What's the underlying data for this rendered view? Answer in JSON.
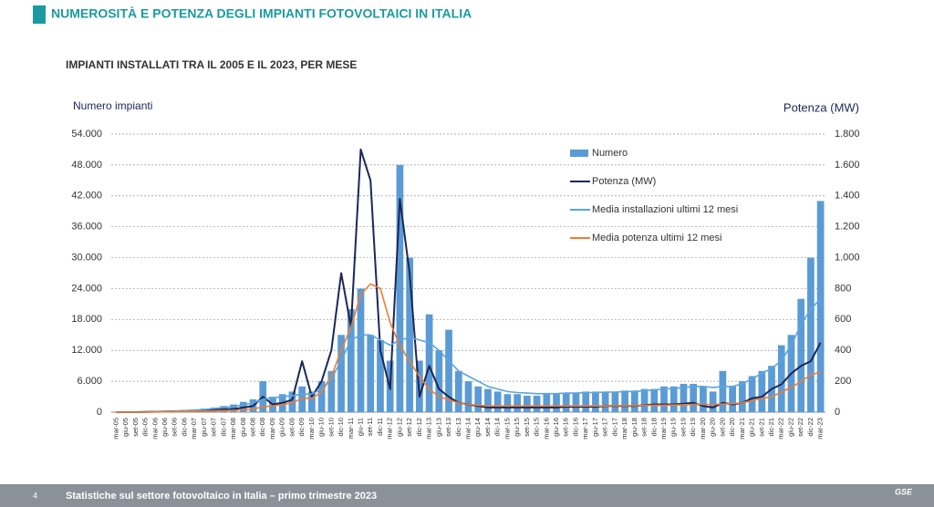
{
  "header": {
    "title": "NUMEROSITÀ E POTENZA DEGLI IMPIANTI FOTOVOLTAICI IN ITALIA"
  },
  "footer": {
    "page": "4",
    "text": "Statistiche sul settore fotovoltaico in Italia – primo trimestre 2023",
    "logo": "GSE"
  },
  "chart_data": {
    "type": "bar",
    "title": "IMPIANTI INSTALLATI TRA IL 2005 E IL 2023, PER MESE",
    "y_label": "Numero impianti",
    "y2_label": "Potenza (MW)",
    "categories": [
      "mar-05",
      "giu-05",
      "set-05",
      "dic-05",
      "mar-06",
      "giu-06",
      "set-06",
      "dic-06",
      "mar-07",
      "giu-07",
      "set-07",
      "dic-07",
      "mar-08",
      "giu-08",
      "set-08",
      "dic-08",
      "mar-09",
      "giu-09",
      "set-09",
      "dic-09",
      "mar-10",
      "giu-10",
      "set-10",
      "dic-10",
      "mar-11",
      "giu-11",
      "set-11",
      "dic-11",
      "mar-12",
      "giu-12",
      "set-12",
      "dic-12",
      "mar-13",
      "giu-13",
      "set-13",
      "dic-13",
      "mar-14",
      "giu-14",
      "set-14",
      "dic-14",
      "mar-15",
      "giu-15",
      "set-15",
      "dic-15",
      "mar-16",
      "giu-16",
      "set-16",
      "dic-16",
      "mar-17",
      "giu-17",
      "set-17",
      "dic-17",
      "mar-18",
      "giu-18",
      "set-18",
      "dic-18",
      "mar-19",
      "giu-19",
      "set-19",
      "dic-19",
      "mar-20",
      "giu-20",
      "set-20",
      "dic-20",
      "mar-21",
      "giu-21",
      "set-21",
      "dic-21",
      "mar-22",
      "giu-22",
      "set-22",
      "dic-22",
      "mar-23"
    ],
    "series": [
      {
        "name": "Numero",
        "type": "bar",
        "axis": "y",
        "color": "#5b9bd5",
        "values": [
          0,
          0,
          0,
          0,
          100,
          200,
          300,
          400,
          500,
          700,
          900,
          1200,
          1500,
          2000,
          2500,
          6000,
          3000,
          3500,
          4000,
          5000,
          4000,
          6000,
          8000,
          15000,
          20000,
          24000,
          15000,
          14000,
          10000,
          48000,
          30000,
          10000,
          19000,
          12000,
          16000,
          8000,
          6000,
          5000,
          4500,
          4000,
          3500,
          3500,
          3200,
          3200,
          3500,
          3500,
          3800,
          3800,
          4000,
          4000,
          4000,
          4000,
          4200,
          4200,
          4500,
          4500,
          5000,
          5000,
          5500,
          5500,
          5000,
          4000,
          8000,
          5000,
          6000,
          7000,
          8000,
          9000,
          13000,
          15000,
          22000,
          30000,
          41000
        ]
      },
      {
        "name": "Potenza (MW)",
        "type": "line",
        "axis": "y2",
        "color": "#1c2758",
        "values": [
          0,
          0,
          0,
          2,
          3,
          5,
          6,
          8,
          10,
          12,
          15,
          18,
          20,
          30,
          40,
          100,
          50,
          60,
          80,
          330,
          100,
          200,
          400,
          900,
          550,
          1700,
          1500,
          400,
          150,
          1380,
          900,
          100,
          300,
          150,
          100,
          60,
          50,
          40,
          30,
          30,
          30,
          30,
          30,
          30,
          30,
          30,
          35,
          35,
          35,
          35,
          40,
          40,
          40,
          40,
          45,
          50,
          50,
          50,
          55,
          60,
          40,
          30,
          60,
          50,
          60,
          90,
          100,
          150,
          180,
          250,
          300,
          330,
          450
        ]
      },
      {
        "name": "Media installazioni ultimi 12 mesi",
        "type": "line",
        "axis": "y",
        "color": "#5aa5e0",
        "values": [
          0,
          0,
          0,
          0,
          100,
          150,
          200,
          300,
          400,
          500,
          700,
          900,
          1100,
          1400,
          1800,
          2500,
          2800,
          3000,
          3200,
          3500,
          3500,
          4500,
          6500,
          10000,
          14000,
          15000,
          15000,
          14000,
          13000,
          14000,
          14500,
          14000,
          13500,
          12000,
          10000,
          8000,
          7000,
          6000,
          5000,
          4500,
          4000,
          3800,
          3700,
          3600,
          3600,
          3600,
          3700,
          3700,
          3800,
          3800,
          3900,
          3900,
          4000,
          4000,
          4200,
          4300,
          4500,
          4600,
          4800,
          5000,
          5000,
          4800,
          5000,
          5000,
          5500,
          6500,
          7500,
          8500,
          10000,
          13000,
          17000,
          20000,
          22000
        ]
      },
      {
        "name": "Media potenza ultimi 12 mesi",
        "type": "line",
        "axis": "y2",
        "color": "#ed7d31",
        "values": [
          0,
          0,
          0,
          0,
          1,
          2,
          3,
          4,
          5,
          6,
          8,
          10,
          12,
          15,
          20,
          35,
          40,
          50,
          60,
          90,
          90,
          130,
          230,
          400,
          550,
          760,
          830,
          800,
          580,
          430,
          330,
          230,
          150,
          100,
          80,
          60,
          50,
          45,
          40,
          40,
          40,
          40,
          40,
          40,
          40,
          40,
          40,
          40,
          40,
          40,
          40,
          42,
          42,
          42,
          44,
          45,
          45,
          46,
          48,
          50,
          50,
          50,
          52,
          55,
          60,
          75,
          90,
          100,
          130,
          160,
          200,
          240,
          260
        ]
      }
    ],
    "ylim": [
      0,
      54000
    ],
    "yticks": [
      0,
      {
        "value": 6000,
        "label": "6.000"
      },
      {
        "value": 12000,
        "label": "12.000"
      },
      {
        "value": 18000,
        "label": "18.000"
      },
      {
        "value": 24000,
        "label": "24.000"
      },
      {
        "value": 30000,
        "label": "30.000"
      },
      {
        "value": 36000,
        "label": "36.000"
      },
      {
        "value": 42000,
        "label": "42.000"
      },
      {
        "value": 48000,
        "label": "48.000"
      },
      {
        "value": 54000,
        "label": "54.000"
      }
    ],
    "y2lim": [
      0,
      1800
    ],
    "y2ticks": [
      0,
      200,
      400,
      600,
      800,
      {
        "value": 1000,
        "label": "1.000"
      },
      {
        "value": 1200,
        "label": "1.200"
      },
      {
        "value": 1400,
        "label": "1.400"
      },
      {
        "value": 1600,
        "label": "1.600"
      },
      {
        "value": 1800,
        "label": "1.800"
      }
    ],
    "grid": true,
    "legend": "upper right"
  }
}
